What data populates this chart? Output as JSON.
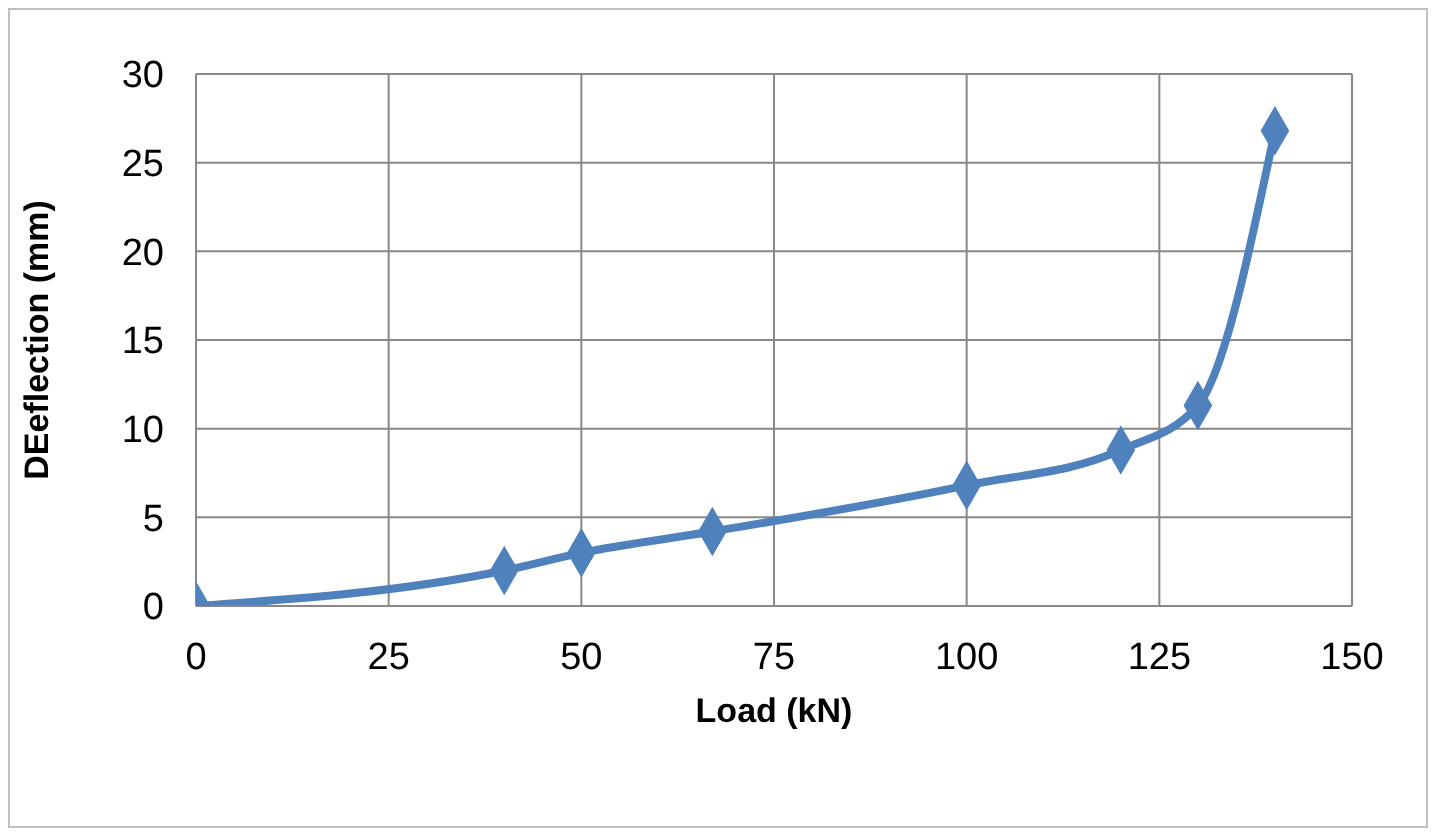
{
  "chart_data": {
    "type": "line",
    "xlabel": "Load (kN)",
    "ylabel": "DEeflection (mm)",
    "x": [
      0,
      40,
      50,
      67,
      100,
      120,
      130,
      140
    ],
    "series": [
      {
        "color": "#4f81bd",
        "values": [
          0,
          2,
          3,
          4.2,
          6.8,
          8.8,
          11.3,
          26.8
        ]
      }
    ],
    "xlim": [
      0,
      150
    ],
    "xticks": [
      0,
      25,
      50,
      75,
      100,
      125,
      150
    ],
    "ylim": [
      0,
      30
    ],
    "yticks": [
      0,
      5,
      10,
      15,
      20,
      25,
      30
    ],
    "grid": true,
    "marker": "diamond",
    "line_style": "solid"
  }
}
